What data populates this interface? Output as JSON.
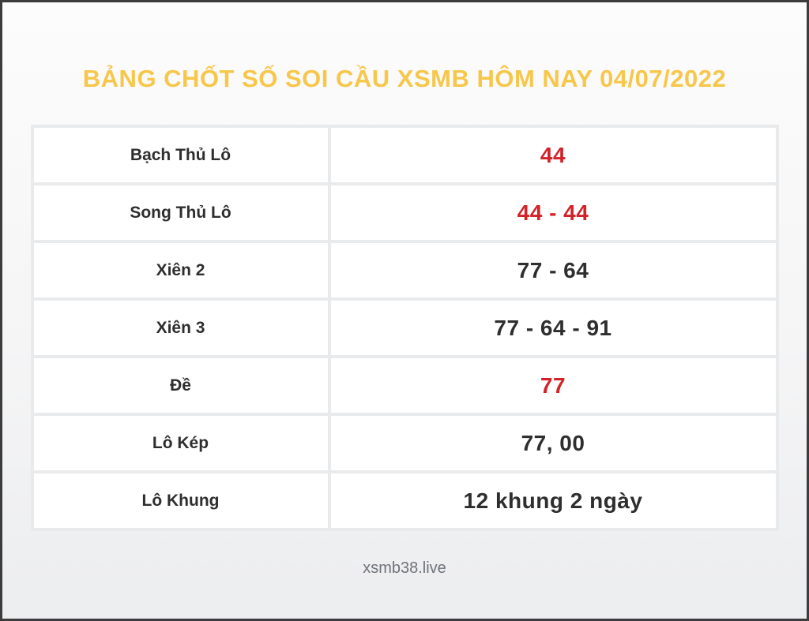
{
  "page": {
    "title": "BẢNG CHỐT SỐ SOI CẦU XSMB HÔM NAY 04/07/2022",
    "footer": "xsmb38.live"
  },
  "colors": {
    "title_gold": "#F6C74A",
    "highlight_red": "#D2222A",
    "text_dark": "#2E2E2E"
  },
  "table": {
    "rows": [
      {
        "label": "Bạch Thủ Lô",
        "value": "44",
        "highlight": true
      },
      {
        "label": "Song Thủ Lô",
        "value": "44 - 44",
        "highlight": true
      },
      {
        "label": "Xiên 2",
        "value": "77 - 64",
        "highlight": false
      },
      {
        "label": "Xiên 3",
        "value": "77 - 64 - 91",
        "highlight": false
      },
      {
        "label": "Đề",
        "value": "77",
        "highlight": true
      },
      {
        "label": "Lô Kép",
        "value": "77, 00",
        "highlight": false
      },
      {
        "label": "Lô Khung",
        "value": "12 khung 2 ngày",
        "highlight": false
      }
    ]
  }
}
